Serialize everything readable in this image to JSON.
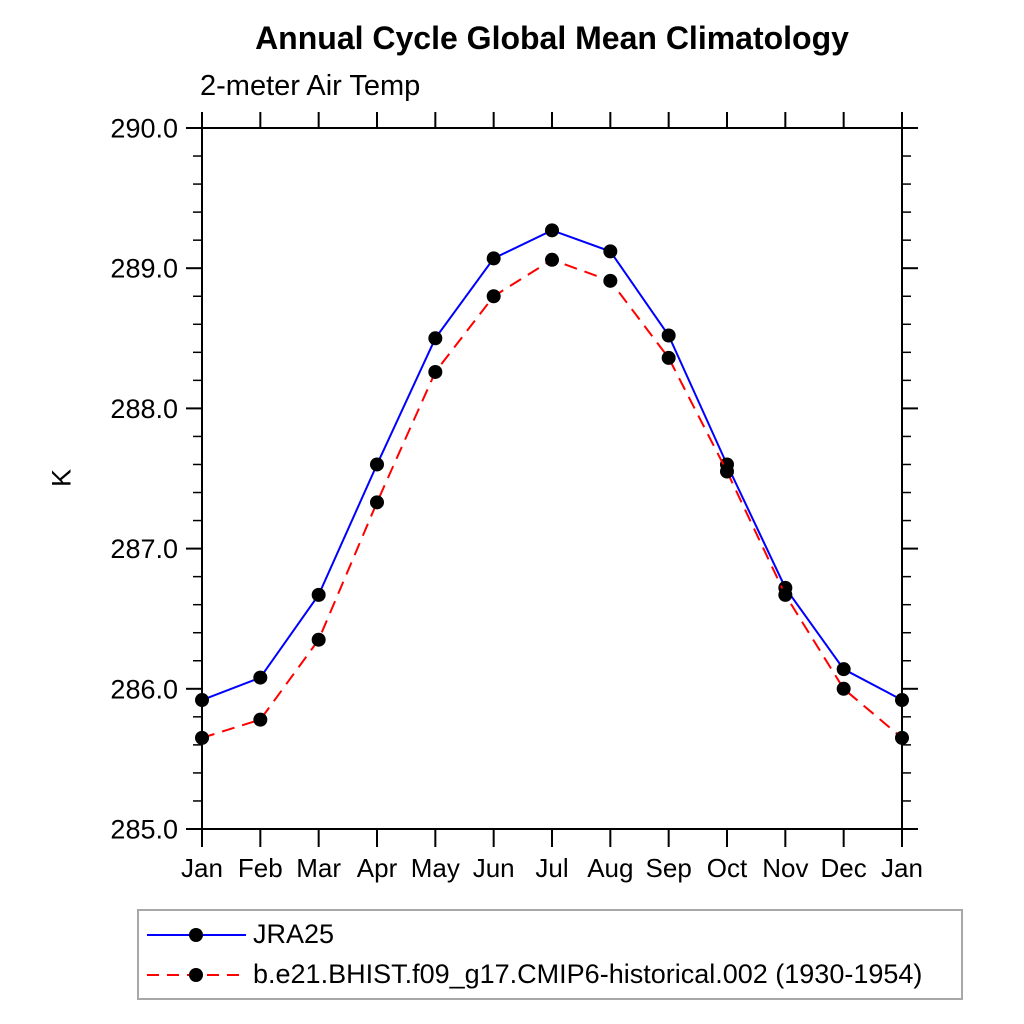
{
  "title": "Annual Cycle Global Mean Climatology",
  "subtitle": "2-meter Air Temp",
  "colors": {
    "background": "#ffffff",
    "axis": "#000000",
    "text": "#000000",
    "legend_border": "#a8a8a8",
    "series_jra25": "#0000ff",
    "series_model": "#ff0000",
    "marker": "#000000"
  },
  "chart_data": {
    "type": "line",
    "title": "Annual Cycle Global Mean Climatology",
    "subtitle": "2-meter Air Temp",
    "xlabel": "",
    "ylabel": "K",
    "x_categories": [
      "Jan",
      "Feb",
      "Mar",
      "Apr",
      "May",
      "Jun",
      "Jul",
      "Aug",
      "Sep",
      "Oct",
      "Nov",
      "Dec",
      "Jan"
    ],
    "ylim": [
      285.0,
      290.0
    ],
    "ytick_labels": [
      "285.0",
      "286.0",
      "287.0",
      "288.0",
      "289.0",
      "290.0"
    ],
    "ytick_values": [
      285.0,
      286.0,
      287.0,
      288.0,
      289.0,
      290.0
    ],
    "yminor_interval": 0.2,
    "grid": false,
    "legend_position": "bottom-left",
    "series": [
      {
        "name": "JRA25",
        "color": "#0000ff",
        "style": "solid",
        "marker": "circle",
        "marker_color": "#000000",
        "values": [
          285.92,
          286.08,
          286.67,
          287.6,
          288.5,
          289.07,
          289.27,
          289.12,
          288.52,
          287.6,
          286.72,
          286.14,
          285.92
        ]
      },
      {
        "name": "b.e21.BHIST.f09_g17.CMIP6-historical.002 (1930-1954)",
        "color": "#ff0000",
        "style": "dashed",
        "marker": "circle",
        "marker_color": "#000000",
        "values": [
          285.65,
          285.78,
          286.35,
          287.33,
          288.26,
          288.8,
          289.06,
          288.91,
          288.36,
          287.55,
          286.67,
          286.0,
          285.65
        ]
      }
    ]
  }
}
